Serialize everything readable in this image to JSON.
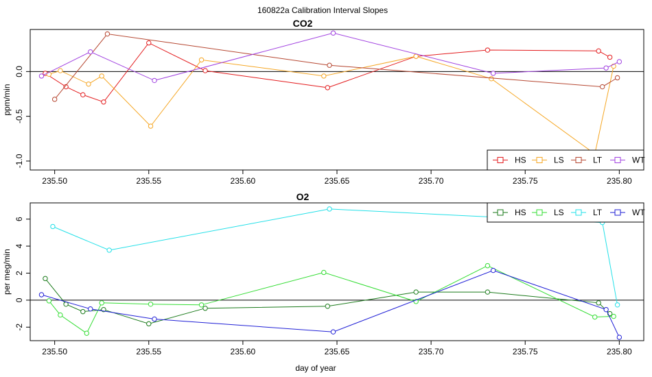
{
  "figure": {
    "title": "160822a   Calibration Interval Slopes",
    "xlabel": "day of year"
  },
  "chart_data": [
    {
      "type": "line",
      "title": "CO2",
      "ylabel": "ppm/min",
      "xlim": [
        235.487,
        235.813
      ],
      "ylim": [
        -1.1,
        0.47
      ],
      "x_ticks": [
        "235.50",
        "235.55",
        "235.60",
        "235.65",
        "235.70",
        "235.75",
        "235.80"
      ],
      "y_ticks": [
        "0.0",
        "-0.5",
        "-1.0"
      ],
      "hline": 0,
      "legend_position": "bottom-right",
      "series": [
        {
          "name": "HS",
          "color": "#e31a1c",
          "x": [
            235.495,
            235.506,
            235.515,
            235.526,
            235.55,
            235.58,
            235.645,
            235.692,
            235.73,
            235.789,
            235.795
          ],
          "y": [
            -0.02,
            -0.17,
            -0.26,
            -0.34,
            0.32,
            0.01,
            -0.18,
            0.17,
            0.24,
            0.23,
            0.16
          ]
        },
        {
          "name": "LS",
          "color": "#f5a623",
          "x": [
            235.497,
            235.503,
            235.518,
            235.525,
            235.551,
            235.578,
            235.643,
            235.692,
            235.732,
            235.787,
            235.797
          ],
          "y": [
            -0.03,
            0.01,
            -0.14,
            -0.05,
            -0.61,
            0.13,
            -0.05,
            0.17,
            -0.08,
            -0.92,
            0.06
          ]
        },
        {
          "name": "LT",
          "color": "#b5452f",
          "x": [
            235.5,
            235.528,
            235.646,
            235.791,
            235.799
          ],
          "y": [
            -0.31,
            0.42,
            0.07,
            -0.17,
            -0.07
          ]
        },
        {
          "name": "WT",
          "color": "#a040e0",
          "x": [
            235.493,
            235.519,
            235.553,
            235.648,
            235.733,
            235.793,
            235.8
          ],
          "y": [
            -0.05,
            0.22,
            -0.1,
            0.43,
            -0.02,
            0.04,
            0.11
          ]
        }
      ]
    },
    {
      "type": "line",
      "title": "O2",
      "ylabel": "per meg/min",
      "xlim": [
        235.487,
        235.813
      ],
      "ylim": [
        -3.0,
        7.2
      ],
      "x_ticks": [
        "235.50",
        "235.55",
        "235.60",
        "235.65",
        "235.70",
        "235.75",
        "235.80"
      ],
      "y_ticks": [
        "6",
        "4",
        "2",
        "0",
        "-2"
      ],
      "hline": 0,
      "legend_position": "top-right",
      "series": [
        {
          "name": "HS",
          "color": "#1a7a1a",
          "x": [
            235.495,
            235.506,
            235.515,
            235.526,
            235.55,
            235.58,
            235.645,
            235.692,
            235.73,
            235.789,
            235.795
          ],
          "y": [
            1.6,
            -0.3,
            -0.85,
            -0.7,
            -1.75,
            -0.6,
            -0.45,
            0.6,
            0.6,
            -0.2,
            -1.0
          ]
        },
        {
          "name": "LS",
          "color": "#33dd33",
          "x": [
            235.497,
            235.503,
            235.517,
            235.525,
            235.551,
            235.578,
            235.643,
            235.692,
            235.73,
            235.787,
            235.797
          ],
          "y": [
            -0.05,
            -1.1,
            -2.45,
            -0.2,
            -0.3,
            -0.35,
            2.05,
            -0.1,
            2.55,
            -1.25,
            -1.2
          ]
        },
        {
          "name": "LT",
          "color": "#22e0e8",
          "x": [
            235.499,
            235.529,
            235.646,
            235.791,
            235.799
          ],
          "y": [
            5.45,
            3.7,
            6.75,
            5.75,
            -0.35
          ]
        },
        {
          "name": "WT",
          "color": "#1f1fd6",
          "x": [
            235.493,
            235.519,
            235.553,
            235.648,
            235.733,
            235.793,
            235.8
          ],
          "y": [
            0.4,
            -0.65,
            -1.4,
            -2.35,
            2.2,
            -0.7,
            -2.75
          ]
        }
      ]
    }
  ]
}
